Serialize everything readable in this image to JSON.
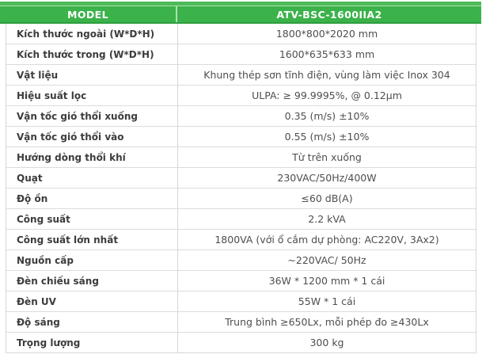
{
  "colors": {
    "green": "#3bb24a",
    "green_light": "#4cbb59",
    "green_dark": "#2f9e40",
    "grid_border": "#d7d7d7",
    "label_text": "#3c3c3c",
    "value_text": "#4e4e4e",
    "header_text": "#ffffff"
  },
  "table": {
    "header": {
      "model_label": "MODEL",
      "model_value": "ATV-BSC-1600IIA2"
    },
    "rows": [
      {
        "label": "Kích thước ngoài (W*D*H)",
        "value": "1800*800*2020 mm"
      },
      {
        "label": "Kích thước trong (W*D*H)",
        "value": "1600*635*633 mm"
      },
      {
        "label": "Vật liệu",
        "value": "Khung thép sơn tĩnh điện, vùng làm việc Inox 304"
      },
      {
        "label": "Hiệu suất lọc",
        "value": "ULPA: ≥ 99.9995%, @ 0.12µm"
      },
      {
        "label": "Vận tốc gió thổi xuống",
        "value": "0.35 (m/s) ±10%"
      },
      {
        "label": "Vận tốc gió thổi vào",
        "value": "0.55 (m/s) ±10%"
      },
      {
        "label": "Hướng dòng thổi khí",
        "value": "Từ trên xuống"
      },
      {
        "label": "Quạt",
        "value": "230VAC/50Hz/400W"
      },
      {
        "label": "Độ ồn",
        "value": "≤60 dB(A)"
      },
      {
        "label": "Công suất",
        "value": "2.2 kVA"
      },
      {
        "label": "Công suất lớn nhất",
        "value": "1800VA (với ổ cắm dự phòng: AC220V, 3Ax2)"
      },
      {
        "label": "Nguồn cấp",
        "value": "~220VAC/ 50Hz"
      },
      {
        "label": "Đèn chiếu sáng",
        "value": "36W * 1200 mm * 1 cái"
      },
      {
        "label": "Đèn UV",
        "value": "55W * 1 cái"
      },
      {
        "label": "Độ sáng",
        "value": "Trung bình ≥650Lx, mỗi phép đo ≥430Lx"
      },
      {
        "label": "Trọng lượng",
        "value": "300 kg"
      }
    ]
  }
}
